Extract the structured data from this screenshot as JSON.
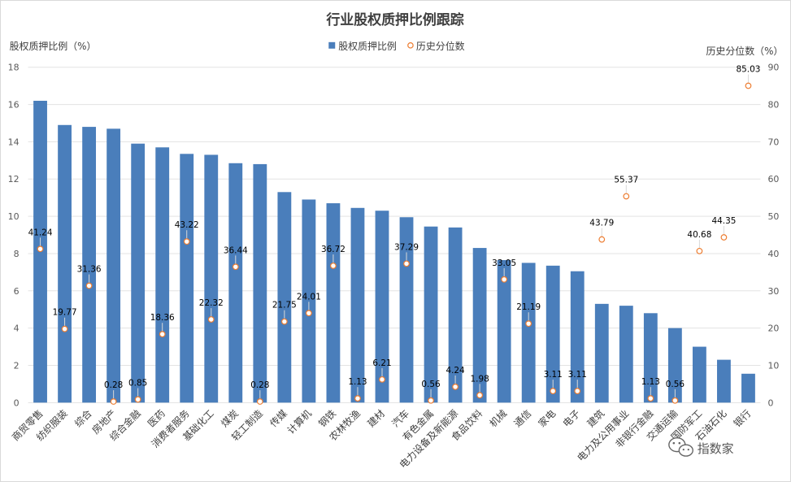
{
  "chart_data": {
    "type": "bar",
    "title": "行业股权质押比例跟踪",
    "ylabel_left": "股权质押比例（%）",
    "ylabel_right": "历史分位数（%）",
    "ylim_left": [
      0,
      18
    ],
    "ylim_right": [
      0,
      90
    ],
    "yticks_left": [
      0,
      2,
      4,
      6,
      8,
      10,
      12,
      14,
      16,
      18
    ],
    "yticks_right": [
      0,
      10,
      20,
      30,
      40,
      50,
      60,
      70,
      80,
      90
    ],
    "legend_position": "top-center",
    "categories": [
      "商贸零售",
      "纺织服装",
      "综合",
      "房地产",
      "综合金融",
      "医药",
      "消费者服务",
      "基础化工",
      "煤炭",
      "轻工制造",
      "传媒",
      "计算机",
      "钢铁",
      "农林牧渔",
      "建材",
      "汽车",
      "有色金属",
      "电力设备及新能源",
      "食品饮料",
      "机械",
      "通信",
      "家电",
      "电子",
      "建筑",
      "电力及公用事业",
      "非银行金融",
      "交通运输",
      "国防军工",
      "石油石化",
      "银行"
    ],
    "series": [
      {
        "name": "股权质押比例",
        "type": "bar",
        "axis": "left",
        "color": "#4a7ebb",
        "values": [
          16.2,
          14.9,
          14.8,
          14.7,
          13.9,
          13.7,
          13.35,
          13.3,
          12.85,
          12.8,
          11.3,
          10.9,
          10.7,
          10.45,
          10.3,
          9.95,
          9.45,
          9.4,
          8.3,
          7.65,
          7.5,
          7.35,
          7.05,
          5.3,
          5.2,
          4.8,
          4.0,
          3.0,
          2.3,
          1.55
        ]
      },
      {
        "name": "历史分位数",
        "type": "scatter",
        "axis": "right",
        "color": "#ed7d31",
        "values": [
          41.24,
          19.77,
          31.36,
          0.28,
          0.85,
          18.36,
          43.22,
          22.32,
          36.44,
          0.28,
          21.75,
          24.01,
          36.72,
          1.13,
          6.21,
          37.29,
          0.56,
          4.24,
          1.98,
          33.05,
          21.19,
          3.11,
          3.11,
          43.79,
          55.37,
          1.13,
          0.56,
          40.68,
          44.35,
          85.03
        ],
        "labels": [
          "41.24",
          "19.77",
          "31.36",
          "0.28",
          "0.85",
          "18.36",
          "43.22",
          "22.32",
          "36.44",
          "0.28",
          "21.75",
          "24.01",
          "36.72",
          "1.13",
          "6.21",
          "37.29",
          "0.56",
          "4.24",
          "1.98",
          "33.05",
          "21.19",
          "3.11",
          "3.11",
          "43.79",
          "55.37",
          "1.13",
          "0.56",
          "40.68",
          "44.35",
          "85.03"
        ]
      }
    ]
  },
  "watermark": {
    "text": "指数家",
    "icon": "wechat-icon"
  }
}
